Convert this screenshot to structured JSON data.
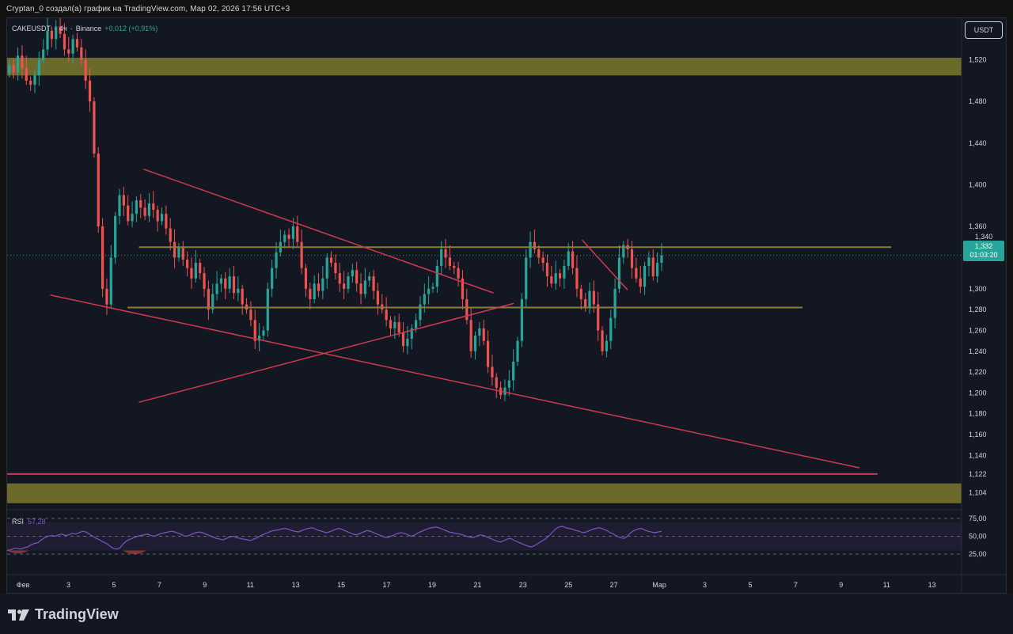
{
  "header": {
    "caption": "Cryptan_0 создал(а) график на TradingView.com, Мар 02, 2026 17:56 UTC+3"
  },
  "symbol": {
    "name": "CAKEUSDT",
    "interval": "4ч",
    "exchange": "Binance",
    "change": "+0,012 (+0,91%)"
  },
  "currency_button": "USDT",
  "price_tag": {
    "price": "1,332",
    "countdown": "01:03:20"
  },
  "level_tag": "1,340",
  "rsi": {
    "label": "RSI",
    "value": "57,28"
  },
  "footer": {
    "logo_text": "TradingView"
  },
  "colors": {
    "up": "#26a69a",
    "down": "#ef5350",
    "zone": "#6b6a2b",
    "level_line": "#8a7d3a",
    "trend_line": "#d03a4f",
    "rsi_line": "#7e57c2"
  },
  "chart_data": {
    "type": "candlestick",
    "symbol": "CAKEUSDT",
    "price_axis": {
      "min": 1.09,
      "max": 1.56,
      "ticks": [
        "1,520",
        "1,480",
        "1,440",
        "1,400",
        "1,360",
        "1,340",
        "1,300",
        "1,280",
        "1,260",
        "1,240",
        "1,220",
        "1,200",
        "1,180",
        "1,160",
        "1,140",
        "1,122",
        "1,104"
      ],
      "tick_values": [
        1.52,
        1.48,
        1.44,
        1.4,
        1.36,
        1.34,
        1.3,
        1.28,
        1.26,
        1.24,
        1.22,
        1.2,
        1.18,
        1.16,
        1.14,
        1.122,
        1.104
      ]
    },
    "time_axis": {
      "labels": [
        "Фев",
        "3",
        "5",
        "7",
        "9",
        "11",
        "13",
        "15",
        "17",
        "19",
        "21",
        "23",
        "25",
        "27",
        "Мар",
        "3",
        "5",
        "7",
        "9",
        "11",
        "13"
      ],
      "day_index": [
        1,
        3,
        5,
        7,
        9,
        11,
        13,
        15,
        17,
        19,
        21,
        23,
        25,
        27,
        29,
        31,
        33,
        35,
        37,
        39,
        41
      ],
      "domain": [
        0.3,
        42.3
      ]
    },
    "closes": [
      1.515,
      1.508,
      1.524,
      1.512,
      1.5,
      1.496,
      1.505,
      1.52,
      1.53,
      1.548,
      1.54,
      1.552,
      1.545,
      1.53,
      1.526,
      1.54,
      1.532,
      1.52,
      1.5,
      1.48,
      1.43,
      1.36,
      1.3,
      1.285,
      1.33,
      1.37,
      1.39,
      1.38,
      1.365,
      1.372,
      1.385,
      1.378,
      1.37,
      1.382,
      1.376,
      1.365,
      1.372,
      1.358,
      1.345,
      1.33,
      1.34,
      1.328,
      1.32,
      1.31,
      1.325,
      1.315,
      1.3,
      1.28,
      1.295,
      1.305,
      1.31,
      1.3,
      1.312,
      1.296,
      1.3,
      1.285,
      1.28,
      1.27,
      1.25,
      1.255,
      1.26,
      1.3,
      1.32,
      1.335,
      1.345,
      1.352,
      1.348,
      1.36,
      1.345,
      1.32,
      1.3,
      1.29,
      1.305,
      1.298,
      1.31,
      1.33,
      1.325,
      1.315,
      1.305,
      1.3,
      1.312,
      1.318,
      1.305,
      1.295,
      1.308,
      1.312,
      1.298,
      1.285,
      1.28,
      1.27,
      1.262,
      1.268,
      1.258,
      1.245,
      1.252,
      1.262,
      1.27,
      1.285,
      1.295,
      1.3,
      1.302,
      1.322,
      1.338,
      1.33,
      1.322,
      1.32,
      1.31,
      1.29,
      1.27,
      1.24,
      1.255,
      1.262,
      1.25,
      1.225,
      1.215,
      1.205,
      1.198,
      1.205,
      1.212,
      1.23,
      1.25,
      1.29,
      1.33,
      1.345,
      1.338,
      1.33,
      1.325,
      1.312,
      1.305,
      1.315,
      1.31,
      1.322,
      1.336,
      1.32,
      1.3,
      1.29,
      1.282,
      1.298,
      1.285,
      1.26,
      1.24,
      1.25,
      1.272,
      1.3,
      1.33,
      1.342,
      1.338,
      1.32,
      1.31,
      1.302,
      1.322,
      1.33,
      1.312,
      1.325,
      1.332
    ],
    "zones": [
      {
        "from": 1.505,
        "to": 1.522
      },
      {
        "from": 1.094,
        "to": 1.113
      }
    ],
    "levels": [
      {
        "price": 1.34,
        "day_from": 6.1,
        "day_to": 39.2
      },
      {
        "price": 1.282,
        "day_from": 5.6,
        "day_to": 35.3
      },
      {
        "price": 1.122,
        "day_from": 0.3,
        "day_to": 38.6
      }
    ],
    "trendlines": [
      {
        "d1": 6.3,
        "p1": 1.415,
        "d2": 21.7,
        "p2": 1.296
      },
      {
        "d1": 2.2,
        "p1": 1.294,
        "d2": 37.8,
        "p2": 1.128
      },
      {
        "d1": 6.1,
        "p1": 1.191,
        "d2": 22.6,
        "p2": 1.286
      },
      {
        "d1": 25.6,
        "p1": 1.347,
        "d2": 27.6,
        "p2": 1.299
      }
    ],
    "rsi": {
      "value": 57.28,
      "axis_ticks": [
        "75,00",
        "50,00",
        "25,00"
      ],
      "tick_values": [
        75,
        50,
        25
      ],
      "band": [
        30,
        70
      ],
      "values": [
        30,
        31,
        33,
        33,
        32,
        34,
        35,
        38,
        40,
        41,
        45,
        48,
        50,
        51,
        50,
        52,
        53,
        51,
        52,
        54,
        53,
        55,
        57,
        56,
        53,
        50,
        47,
        45,
        42,
        40,
        36,
        33,
        32,
        34,
        40,
        44,
        46,
        48,
        50,
        51,
        52,
        53,
        51,
        50,
        52,
        54,
        55,
        56,
        57,
        56,
        54,
        52,
        50,
        51,
        53,
        55,
        56,
        55,
        53,
        51,
        49,
        47,
        46,
        45,
        47,
        49,
        50,
        48,
        47,
        46,
        45,
        44,
        46,
        48,
        51,
        53,
        55,
        57,
        58,
        59,
        60,
        61,
        60,
        58,
        57,
        56,
        58,
        60,
        61,
        62,
        60,
        58,
        57,
        55,
        56,
        58,
        60,
        61,
        59,
        57,
        55,
        53,
        52,
        54,
        56,
        58,
        57,
        55,
        53,
        51,
        49,
        48,
        50,
        52,
        54,
        55,
        54,
        52,
        50,
        52,
        55,
        57,
        59,
        61,
        62,
        63,
        62,
        60,
        58,
        56,
        55,
        54,
        53,
        52,
        50,
        49,
        48,
        50,
        52,
        51,
        49,
        47,
        45,
        43,
        42,
        44,
        46,
        47,
        44,
        42,
        40,
        38,
        36,
        35,
        37,
        40,
        43,
        46,
        50,
        55,
        60,
        63,
        64,
        62,
        61,
        60,
        58,
        57,
        55,
        56,
        58,
        60,
        61,
        62,
        60,
        58,
        55,
        53,
        50,
        48,
        47,
        50,
        55,
        58,
        60,
        61,
        59,
        57,
        56,
        55,
        56,
        57
      ],
      "label": "RSI"
    }
  }
}
